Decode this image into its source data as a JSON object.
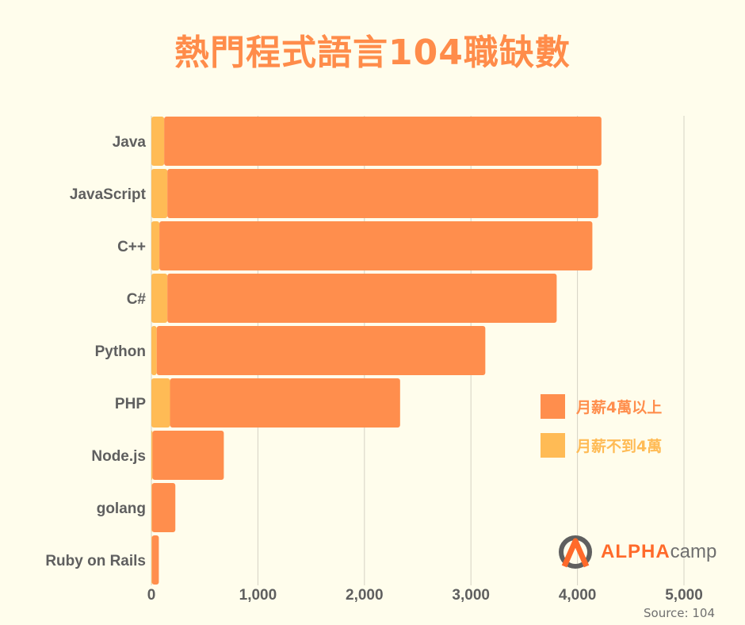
{
  "title": "熱門程式語言104職缺數",
  "chart_data": {
    "type": "bar",
    "orientation": "horizontal",
    "stacked": true,
    "categories": [
      "Java",
      "JavaScript",
      "C++",
      "C#",
      "Python",
      "PHP",
      "Node.js",
      "golang",
      "Ruby on Rails"
    ],
    "series": [
      {
        "name": "月薪不到4萬",
        "color": "#ffbb55",
        "values": [
          120,
          150,
          75,
          150,
          50,
          175,
          10,
          5,
          5
        ]
      },
      {
        "name": "月薪4萬以上",
        "color": "#ff8e4d",
        "values": [
          4105,
          4045,
          4065,
          3655,
          3085,
          2160,
          670,
          220,
          65
        ]
      }
    ],
    "xlim": [
      0,
      5000
    ],
    "xticks": [
      0,
      1000,
      2000,
      3000,
      4000,
      5000
    ],
    "xtick_labels": [
      "0",
      "1,000",
      "2,000",
      "3,000",
      "4,000",
      "5,000"
    ],
    "grid": true,
    "legend_position": "right"
  },
  "legend": {
    "items": [
      {
        "label": "月薪4萬以上",
        "color": "#ff8e4d"
      },
      {
        "label": "月薪不到4萬",
        "color": "#ffbb55"
      }
    ]
  },
  "logo": {
    "alpha": "ALPHA",
    "camp": "camp",
    "icon": "alpha-camp-logo-icon"
  },
  "source": "Source: 104"
}
